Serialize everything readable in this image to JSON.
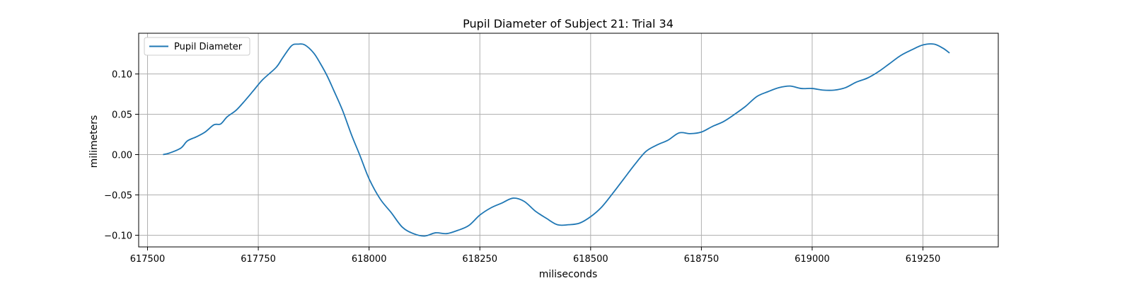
{
  "chart_data": {
    "type": "line",
    "title": "Pupil Diameter of Subject 21: Trial 34",
    "xlabel": "miliseconds",
    "ylabel": "milimeters",
    "xlim": [
      617480,
      619420
    ],
    "ylim": [
      -0.1145,
      0.1505
    ],
    "xticks": [
      617500,
      617750,
      618000,
      618250,
      618500,
      618750,
      619000,
      619250
    ],
    "yticks": [
      -0.1,
      -0.05,
      0.0,
      0.05,
      0.1
    ],
    "xtick_labels": [
      "617500",
      "617750",
      "618000",
      "618250",
      "618500",
      "618750",
      "619000",
      "619250"
    ],
    "ytick_labels": [
      "−0.10",
      "−0.05",
      "0.00",
      "0.05",
      "0.10"
    ],
    "grid": true,
    "legend_position": "top-left",
    "series": [
      {
        "name": "Pupil Diameter",
        "color": "#1f77b4",
        "x": [
          617535,
          617550,
          617575,
          617590,
          617610,
          617630,
          617650,
          617665,
          617680,
          617700,
          617720,
          617740,
          617760,
          617790,
          617805,
          617825,
          617840,
          617855,
          617875,
          617890,
          617905,
          617920,
          617940,
          617960,
          617980,
          618000,
          618025,
          618050,
          618075,
          618100,
          618125,
          618150,
          618175,
          618200,
          618225,
          618250,
          618275,
          618300,
          618325,
          618350,
          618375,
          618400,
          618425,
          618450,
          618475,
          618500,
          618525,
          618550,
          618575,
          618600,
          618625,
          618650,
          618675,
          618700,
          618725,
          618750,
          618775,
          618800,
          618825,
          618850,
          618875,
          618900,
          618925,
          618950,
          618975,
          619000,
          619025,
          619050,
          619075,
          619100,
          619125,
          619150,
          619175,
          619200,
          619225,
          619250,
          619275,
          619295,
          619310
        ],
        "y": [
          0.0,
          0.002,
          0.008,
          0.017,
          0.022,
          0.028,
          0.037,
          0.038,
          0.047,
          0.055,
          0.067,
          0.08,
          0.093,
          0.108,
          0.12,
          0.135,
          0.137,
          0.136,
          0.126,
          0.113,
          0.098,
          0.08,
          0.055,
          0.025,
          -0.002,
          -0.03,
          -0.055,
          -0.072,
          -0.09,
          -0.098,
          -0.101,
          -0.097,
          -0.098,
          -0.094,
          -0.088,
          -0.075,
          -0.066,
          -0.06,
          -0.054,
          -0.058,
          -0.07,
          -0.079,
          -0.087,
          -0.087,
          -0.085,
          -0.077,
          -0.065,
          -0.048,
          -0.03,
          -0.012,
          0.004,
          0.012,
          0.018,
          0.027,
          0.026,
          0.028,
          0.035,
          0.041,
          0.05,
          0.06,
          0.072,
          0.078,
          0.083,
          0.085,
          0.082,
          0.082,
          0.08,
          0.08,
          0.083,
          0.09,
          0.095,
          0.103,
          0.113,
          0.123,
          0.13,
          0.136,
          0.137,
          0.132,
          0.126
        ]
      }
    ]
  }
}
